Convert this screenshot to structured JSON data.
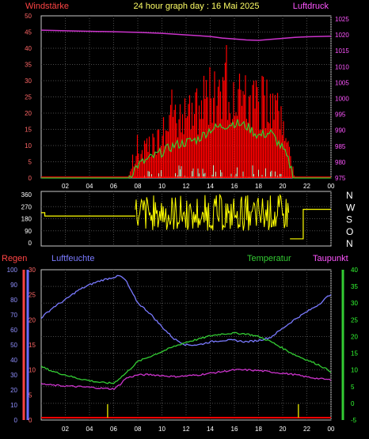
{
  "title": "24 hour graph day : 16 Mai 2025",
  "time_ticks": [
    "02",
    "04",
    "06",
    "08",
    "10",
    "12",
    "14",
    "16",
    "18",
    "20",
    "22",
    "00"
  ],
  "colors": {
    "background": "#000000",
    "grid": "#4a4a4a",
    "frame": "#c8c8c8",
    "wind": "#ff0000",
    "wind_avg": "#33cc33",
    "wind_low": "#c8f0c8",
    "pressure": "#cc33cc",
    "direction": "#ffff00",
    "rain": "#ff0000",
    "humidity": "#7a7aff",
    "temperature": "#33cc33",
    "dewpoint": "#cc33cc",
    "left_axis_text": "#ff6666",
    "right_axis_text": "#ff55ff"
  },
  "chart_data": [
    {
      "type": "line",
      "panel": "top",
      "labels": {
        "left": "Windstärke",
        "right": "Luftdruck"
      },
      "x_range": [
        0,
        24
      ],
      "left_axis": {
        "ticks": [
          "50",
          "45",
          "40",
          "35",
          "30",
          "25",
          "20",
          "15",
          "10",
          "5",
          "0"
        ],
        "range": [
          0,
          50
        ]
      },
      "right_axis": {
        "ticks": [
          "1025",
          "1020",
          "1015",
          "1010",
          "1005",
          "1000",
          "995",
          "990",
          "985",
          "980",
          "975"
        ],
        "range": [
          975,
          1026
        ]
      },
      "series": [
        {
          "axis": "right",
          "color": "pressure",
          "x": [
            0,
            3,
            6,
            8,
            10,
            12,
            14,
            15,
            16,
            17,
            18,
            19,
            20,
            21,
            22,
            23,
            24
          ],
          "y": [
            1021.5,
            1021.2,
            1021.0,
            1020.8,
            1020.5,
            1020.0,
            1019.5,
            1019.0,
            1018.7,
            1018.4,
            1018.3,
            1018.6,
            1018.9,
            1019.2,
            1019.4,
            1019.5,
            1019.6
          ]
        },
        {
          "axis": "left",
          "color": "wind_avg",
          "x": [
            0,
            7.2,
            8,
            9,
            10,
            11,
            12,
            13,
            14,
            15,
            16,
            17,
            18,
            19,
            20,
            20.5,
            21,
            24
          ],
          "y": [
            0,
            0,
            4,
            6,
            8,
            10,
            11,
            12,
            15,
            16,
            17,
            16,
            13,
            14,
            9,
            5,
            0,
            0
          ]
        }
      ]
    },
    {
      "type": "line",
      "panel": "direction",
      "left_axis": {
        "ticks": [
          "360",
          "270",
          "180",
          "90",
          "0"
        ],
        "range": [
          0,
          360
        ]
      },
      "right_axis": {
        "ticks": [
          "N",
          "W",
          "S",
          "O",
          "N"
        ]
      },
      "x_range": [
        0,
        24
      ],
      "series": [
        {
          "color": "direction",
          "x": [
            0,
            0.3,
            0.3,
            7.8
          ],
          "y": [
            225,
            225,
            200,
            200
          ]
        }
      ]
    },
    {
      "type": "line",
      "panel": "bottom",
      "labels": {
        "rain": "Regen",
        "humidity": "Luftfeuchte",
        "temperature": "Temperatur",
        "dewpoint": "Taupunkt"
      },
      "x_range": [
        0,
        24
      ],
      "rain_axis": {
        "ticks": [
          "30",
          "25",
          "20",
          "15",
          "10",
          "5",
          "0"
        ],
        "range": [
          0,
          30
        ]
      },
      "humidity_axis": {
        "ticks": [
          "100",
          "90",
          "80",
          "70",
          "60",
          "50",
          "40",
          "30",
          "20",
          "10",
          "0"
        ],
        "range": [
          0,
          100
        ]
      },
      "temperature_axis": {
        "ticks": [
          "40",
          "35",
          "30",
          "25",
          "20",
          "15",
          "10",
          "5",
          "0",
          "-5"
        ],
        "range": [
          -5,
          40
        ]
      },
      "series": [
        {
          "name": "Luftfeuchte",
          "axis": "humidity",
          "color": "humidity",
          "x": [
            0,
            1,
            2,
            3,
            4,
            5,
            6,
            6.5,
            7,
            7.5,
            8,
            9,
            10,
            11,
            12,
            13,
            14,
            15,
            16,
            17,
            18,
            19,
            20,
            21,
            22,
            23,
            24
          ],
          "y": [
            68,
            75,
            80,
            86,
            90,
            93,
            95,
            96,
            93,
            85,
            78,
            71,
            62,
            54,
            50,
            50,
            52,
            53,
            53,
            52,
            53,
            55,
            61,
            67,
            72,
            77,
            84
          ]
        },
        {
          "name": "Temperatur",
          "axis": "temperature",
          "color": "temperature",
          "x": [
            0,
            1,
            2,
            3,
            4,
            5,
            6,
            7,
            8,
            9,
            10,
            11,
            12,
            13,
            14,
            15,
            16,
            17,
            18,
            19,
            20,
            21,
            22,
            23,
            24
          ],
          "y": [
            11,
            9.5,
            8.5,
            7.5,
            6.8,
            6.2,
            6.0,
            9.0,
            12.5,
            14.0,
            15.5,
            17.0,
            18.3,
            19.2,
            20.2,
            20.8,
            21.0,
            20.8,
            20.0,
            18.5,
            16.5,
            14.5,
            13.0,
            11.5,
            9.5
          ]
        },
        {
          "name": "Taupunkt",
          "axis": "temperature",
          "color": "dewpoint",
          "x": [
            0,
            1,
            2,
            3,
            4,
            5,
            6,
            6.5,
            7,
            8,
            9,
            10,
            11,
            12,
            13,
            14,
            15,
            16,
            17,
            18,
            19,
            20,
            21,
            22,
            23,
            24
          ],
          "y": [
            5.8,
            5.4,
            5.2,
            5.0,
            4.8,
            4.5,
            4.3,
            5.5,
            7.5,
            8.5,
            8.6,
            8.3,
            8.0,
            8.2,
            8.5,
            9.0,
            9.5,
            10.0,
            10.0,
            9.8,
            9.4,
            9.0,
            8.6,
            7.9,
            7.4,
            7.0
          ]
        }
      ],
      "rain_events": [
        5.5,
        21.3
      ]
    }
  ]
}
